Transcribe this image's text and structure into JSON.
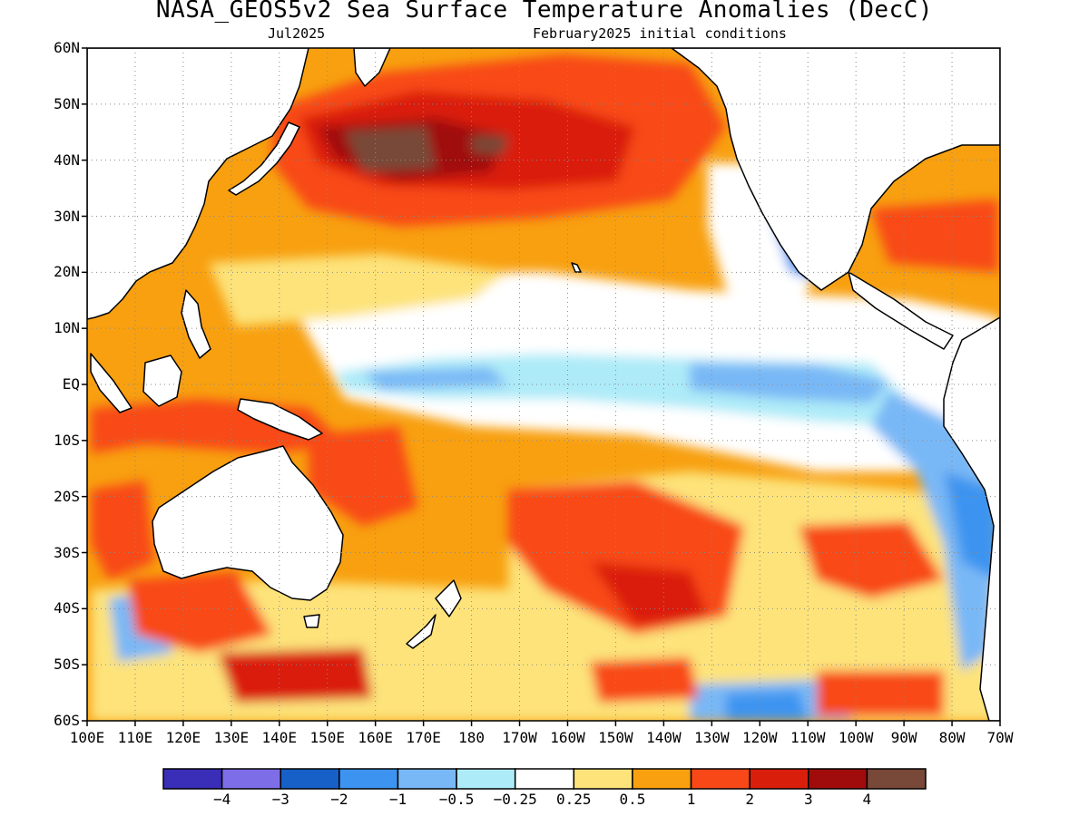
{
  "title": "NASA_GEOS5v2 Sea Surface Temperature Anomalies (DecC)",
  "subtitle_left": "Jul2025",
  "subtitle_right": "February2025 initial conditions",
  "lat_labels": [
    "60N",
    "50N",
    "40N",
    "30N",
    "20N",
    "10N",
    "EQ",
    "10S",
    "20S",
    "30S",
    "40S",
    "50S",
    "60S"
  ],
  "lon_labels": [
    "100E",
    "110E",
    "120E",
    "130E",
    "140E",
    "150E",
    "160E",
    "170E",
    "180",
    "170W",
    "160W",
    "150W",
    "140W",
    "130W",
    "120W",
    "110W",
    "100W",
    "90W",
    "80W",
    "70W"
  ],
  "colorbar": {
    "colors": [
      "#3a2db8",
      "#7d6ee8",
      "#1660c8",
      "#3d94f0",
      "#79b8f6",
      "#aeebf8",
      "#ffffff",
      "#fde37a",
      "#f8a010",
      "#f84818",
      "#da1e0c",
      "#a00c0c",
      "#784838"
    ],
    "tick_labels": [
      "-4",
      "-3",
      "-2",
      "-1",
      "-0.5",
      "-0.25",
      "0.25",
      "0.5",
      "1",
      "2",
      "3",
      "4"
    ]
  },
  "chart_data": {
    "type": "heatmap",
    "title": "NASA_GEOS5v2 Sea Surface Temperature Anomalies (DecC)",
    "variable": "Sea Surface Temperature Anomalies",
    "units": "DecC",
    "forecast_month": "Jul2025",
    "initial_conditions": "February2025",
    "lat_range": [
      "60S",
      "60N"
    ],
    "lon_range": [
      "100E",
      "70W"
    ],
    "levels": [
      -4,
      -3,
      -2,
      -1,
      -0.5,
      -0.25,
      0.25,
      0.5,
      1,
      2,
      3,
      4
    ],
    "grid": true
  }
}
